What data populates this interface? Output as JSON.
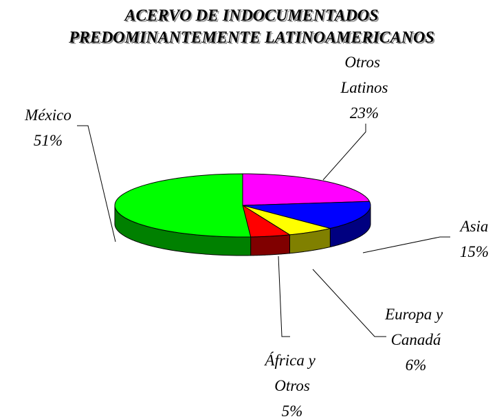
{
  "chart_data": {
    "type": "pie",
    "title": [
      "ACERVO DE INDOCUMENTADOS",
      "PREDOMINANTEMENTE LATINOAMERICANOS"
    ],
    "categories": [
      "Otros Latinos",
      "Asia",
      "Europa y Canadá",
      "África y Otros",
      "México"
    ],
    "values": [
      23,
      15,
      6,
      5,
      51
    ],
    "value_labels": [
      "23%",
      "15%",
      "6%",
      "5%",
      "51%"
    ],
    "colors": [
      "#ff00ff",
      "#0000ff",
      "#ffff00",
      "#ff0000",
      "#00ff00"
    ],
    "side_colors": [
      "#800080",
      "#000080",
      "#808000",
      "#800000",
      "#008000"
    ]
  }
}
